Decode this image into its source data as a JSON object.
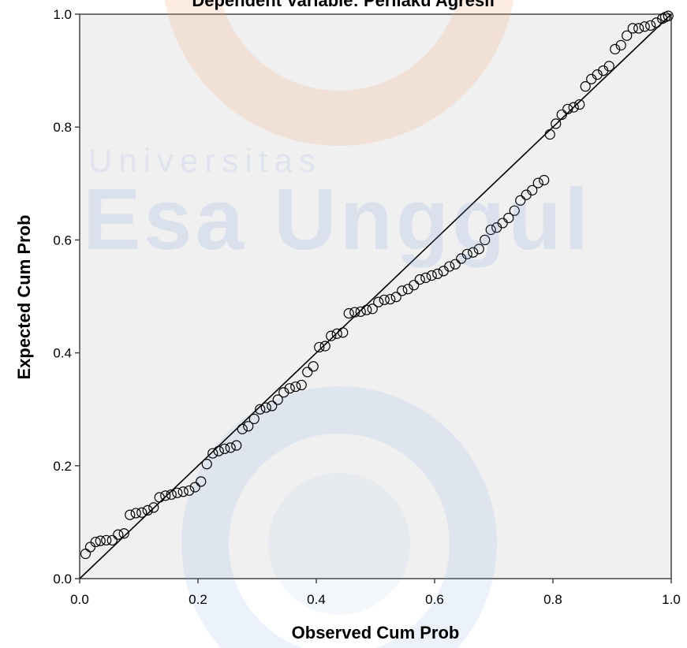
{
  "watermark": {
    "line1": "Universitas",
    "line2": "Esa Unggul"
  },
  "chart_data": {
    "type": "scatter",
    "title": "Dependent Variable: Perilaku Agresif",
    "xlabel": "Observed Cum Prob",
    "ylabel": "Expected Cum Prob",
    "xlim": [
      0.0,
      1.0
    ],
    "ylim": [
      0.0,
      1.0
    ],
    "xticks": [
      "0.0",
      "0.2",
      "0.4",
      "0.6",
      "0.8",
      "1.0"
    ],
    "yticks": [
      "0.0",
      "0.2",
      "0.4",
      "0.6",
      "0.8",
      "1.0"
    ],
    "reference_line": {
      "from": [
        0,
        0
      ],
      "to": [
        1,
        1
      ]
    },
    "grid": false,
    "series": [
      {
        "marker": "open-circle",
        "points": [
          [
            0.01,
            0.044
          ],
          [
            0.018,
            0.056
          ],
          [
            0.027,
            0.065
          ],
          [
            0.035,
            0.067
          ],
          [
            0.045,
            0.068
          ],
          [
            0.055,
            0.068
          ],
          [
            0.065,
            0.078
          ],
          [
            0.075,
            0.08
          ],
          [
            0.085,
            0.113
          ],
          [
            0.095,
            0.116
          ],
          [
            0.105,
            0.117
          ],
          [
            0.115,
            0.121
          ],
          [
            0.125,
            0.126
          ],
          [
            0.135,
            0.144
          ],
          [
            0.145,
            0.147
          ],
          [
            0.155,
            0.149
          ],
          [
            0.165,
            0.152
          ],
          [
            0.175,
            0.154
          ],
          [
            0.185,
            0.156
          ],
          [
            0.195,
            0.162
          ],
          [
            0.205,
            0.172
          ],
          [
            0.215,
            0.203
          ],
          [
            0.225,
            0.222
          ],
          [
            0.235,
            0.226
          ],
          [
            0.245,
            0.23
          ],
          [
            0.255,
            0.232
          ],
          [
            0.265,
            0.236
          ],
          [
            0.275,
            0.265
          ],
          [
            0.285,
            0.27
          ],
          [
            0.295,
            0.283
          ],
          [
            0.305,
            0.3
          ],
          [
            0.315,
            0.303
          ],
          [
            0.325,
            0.306
          ],
          [
            0.335,
            0.317
          ],
          [
            0.345,
            0.33
          ],
          [
            0.355,
            0.337
          ],
          [
            0.365,
            0.34
          ],
          [
            0.375,
            0.343
          ],
          [
            0.385,
            0.366
          ],
          [
            0.395,
            0.376
          ],
          [
            0.405,
            0.41
          ],
          [
            0.415,
            0.412
          ],
          [
            0.425,
            0.43
          ],
          [
            0.435,
            0.434
          ],
          [
            0.445,
            0.436
          ],
          [
            0.455,
            0.47
          ],
          [
            0.465,
            0.472
          ],
          [
            0.475,
            0.473
          ],
          [
            0.485,
            0.476
          ],
          [
            0.495,
            0.478
          ],
          [
            0.505,
            0.49
          ],
          [
            0.515,
            0.494
          ],
          [
            0.525,
            0.495
          ],
          [
            0.535,
            0.499
          ],
          [
            0.545,
            0.51
          ],
          [
            0.555,
            0.513
          ],
          [
            0.565,
            0.52
          ],
          [
            0.575,
            0.53
          ],
          [
            0.585,
            0.533
          ],
          [
            0.595,
            0.537
          ],
          [
            0.605,
            0.54
          ],
          [
            0.615,
            0.545
          ],
          [
            0.625,
            0.553
          ],
          [
            0.635,
            0.557
          ],
          [
            0.645,
            0.567
          ],
          [
            0.655,
            0.575
          ],
          [
            0.665,
            0.578
          ],
          [
            0.675,
            0.584
          ],
          [
            0.685,
            0.6
          ],
          [
            0.695,
            0.618
          ],
          [
            0.705,
            0.622
          ],
          [
            0.715,
            0.63
          ],
          [
            0.725,
            0.639
          ],
          [
            0.735,
            0.652
          ],
          [
            0.745,
            0.67
          ],
          [
            0.755,
            0.68
          ],
          [
            0.765,
            0.688
          ],
          [
            0.775,
            0.701
          ],
          [
            0.785,
            0.706
          ],
          [
            0.795,
            0.787
          ],
          [
            0.805,
            0.806
          ],
          [
            0.815,
            0.822
          ],
          [
            0.825,
            0.832
          ],
          [
            0.835,
            0.835
          ],
          [
            0.845,
            0.84
          ],
          [
            0.855,
            0.872
          ],
          [
            0.865,
            0.885
          ],
          [
            0.875,
            0.893
          ],
          [
            0.885,
            0.9
          ],
          [
            0.895,
            0.908
          ],
          [
            0.905,
            0.938
          ],
          [
            0.915,
            0.945
          ],
          [
            0.925,
            0.962
          ],
          [
            0.935,
            0.975
          ],
          [
            0.945,
            0.975
          ],
          [
            0.955,
            0.978
          ],
          [
            0.965,
            0.98
          ],
          [
            0.975,
            0.985
          ],
          [
            0.985,
            0.992
          ],
          [
            0.99,
            0.995
          ],
          [
            0.995,
            0.997
          ]
        ]
      }
    ]
  }
}
